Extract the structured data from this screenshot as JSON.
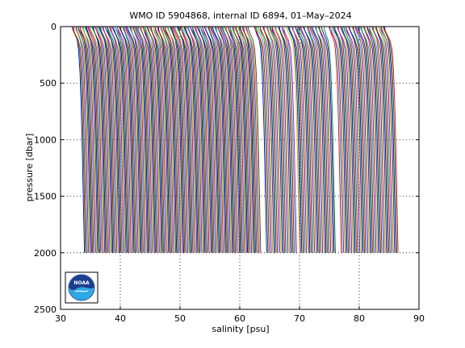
{
  "chart_data": {
    "type": "line",
    "title": "WMO ID 5904868, internal ID 6894, 01–May–2024",
    "xlabel": "salinity [psu]",
    "ylabel": "pressure [dbar]",
    "xlim": [
      30,
      90
    ],
    "ylim": [
      2500,
      0
    ],
    "y_reversed": true,
    "grid": "dotted",
    "x_ticks": [
      "30",
      "40",
      "50",
      "60",
      "70",
      "80",
      "90"
    ],
    "y_ticks": [
      "0",
      "500",
      "1000",
      "1500",
      "2000",
      "2500"
    ],
    "legend": "none",
    "profile_colors": [
      "#0000ff",
      "#008000",
      "#ff0000",
      "#00bfbf",
      "#bf00bf",
      "#bfbf00",
      "#404040"
    ],
    "profile_groups": [
      {
        "x_start": 33.0,
        "x_end": 62.5,
        "count": 175,
        "max_pressure": 2000
      },
      {
        "x_start": 63.5,
        "x_end": 68.5,
        "count": 26,
        "max_pressure": 2000
      },
      {
        "x_start": 69.0,
        "x_end": 75.0,
        "count": 32,
        "max_pressure": 2000
      },
      {
        "x_start": 76.0,
        "x_end": 85.5,
        "count": 50,
        "max_pressure": 2000
      }
    ],
    "profile_shape": {
      "pressure": [
        0,
        20,
        60,
        120,
        200,
        400,
        700,
        1000,
        1500,
        2000
      ],
      "salinity_offset": [
        -1.15,
        -1.1,
        -0.8,
        -0.3,
        0.0,
        0.25,
        0.45,
        0.6,
        0.8,
        1.0
      ]
    }
  },
  "logo": {
    "text": "NOAA"
  }
}
